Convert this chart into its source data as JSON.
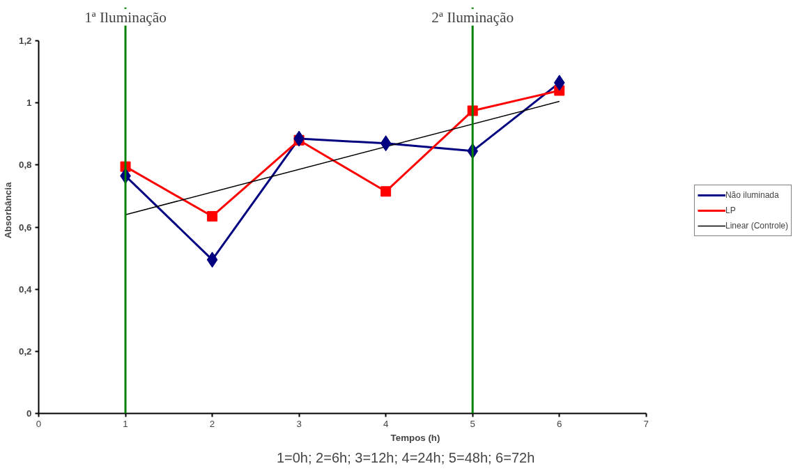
{
  "chart_data": {
    "type": "line",
    "xlabel": "Tempos (h)",
    "ylabel": "Absorbância",
    "x": [
      1,
      2,
      3,
      4,
      5,
      6
    ],
    "series": [
      {
        "name": "Não iluminada",
        "color": "#000080",
        "marker": "diamond",
        "values": [
          0.765,
          0.495,
          0.885,
          0.87,
          0.845,
          1.065
        ]
      },
      {
        "name": "LP",
        "color": "#ff0000",
        "marker": "square",
        "values": [
          0.795,
          0.635,
          0.88,
          0.715,
          0.975,
          1.04
        ]
      },
      {
        "name": "Linear (Controle)",
        "color": "#000000",
        "marker": "none",
        "x": [
          1,
          6
        ],
        "values": [
          0.64,
          1.005
        ]
      }
    ],
    "xlim": [
      0,
      7
    ],
    "xticks": [
      0,
      1,
      2,
      3,
      4,
      5,
      6,
      7
    ],
    "ylim": [
      0,
      1.2
    ],
    "yticks": [
      {
        "value": 0,
        "label": "0"
      },
      {
        "value": 0.2,
        "label": "0,2"
      },
      {
        "value": 0.4,
        "label": "0,4"
      },
      {
        "value": 0.6,
        "label": "0,6"
      },
      {
        "value": 0.8,
        "label": "0,8"
      },
      {
        "value": 1,
        "label": "1"
      },
      {
        "value": 1.2,
        "label": "1,2"
      }
    ],
    "ref_lines": [
      {
        "axis": "x",
        "value": 1,
        "label": "1ª Iluminação",
        "color": "#008000"
      },
      {
        "axis": "x",
        "value": 5,
        "label": "2ª Iluminação",
        "color": "#008000"
      }
    ],
    "annotations": [
      "1=0h;  2=6h;  3=12h;  4=24h;  5=48h;  6=72h"
    ],
    "grid": false,
    "legend": "right"
  }
}
